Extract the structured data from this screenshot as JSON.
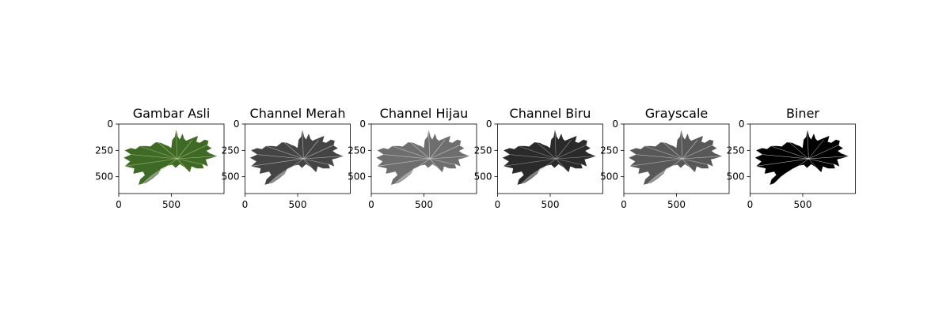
{
  "chart_data": [
    {
      "type": "image",
      "title": "Gambar Asli",
      "color_mode": "rgb",
      "xlim": [
        0,
        1000
      ],
      "ylim": [
        660,
        0
      ],
      "xticks": [
        {
          "value": 0,
          "label": "0"
        },
        {
          "value": 500,
          "label": "500"
        }
      ],
      "yticks": [
        {
          "value": 0,
          "label": "0"
        },
        {
          "value": 250,
          "label": "250"
        },
        {
          "value": 500,
          "label": "500"
        }
      ],
      "colors": {
        "fill": "#3e6a25",
        "shade": "#27491a",
        "vein": "#b8c98a",
        "background": "#ffffff"
      }
    },
    {
      "type": "image",
      "title": "Channel Merah",
      "color_mode": "gray",
      "xlim": [
        0,
        1000
      ],
      "ylim": [
        660,
        0
      ],
      "xticks": [
        {
          "value": 0,
          "label": "0"
        },
        {
          "value": 500,
          "label": "500"
        }
      ],
      "yticks": [
        {
          "value": 0,
          "label": "0"
        },
        {
          "value": 250,
          "label": "250"
        },
        {
          "value": 500,
          "label": "500"
        }
      ],
      "colors": {
        "fill": "#444444",
        "shade": "#2c2c2c",
        "vein": "#d0d0d0",
        "background": "#ffffff"
      }
    },
    {
      "type": "image",
      "title": "Channel Hijau",
      "color_mode": "gray",
      "xlim": [
        0,
        1000
      ],
      "ylim": [
        660,
        0
      ],
      "xticks": [
        {
          "value": 0,
          "label": "0"
        },
        {
          "value": 500,
          "label": "500"
        }
      ],
      "yticks": [
        {
          "value": 0,
          "label": "0"
        },
        {
          "value": 250,
          "label": "250"
        },
        {
          "value": 500,
          "label": "500"
        }
      ],
      "colors": {
        "fill": "#6e6e6e",
        "shade": "#505050",
        "vein": "#dcdcdc",
        "background": "#ffffff"
      }
    },
    {
      "type": "image",
      "title": "Channel Biru",
      "color_mode": "gray",
      "xlim": [
        0,
        1000
      ],
      "ylim": [
        660,
        0
      ],
      "xticks": [
        {
          "value": 0,
          "label": "0"
        },
        {
          "value": 500,
          "label": "500"
        }
      ],
      "yticks": [
        {
          "value": 0,
          "label": "0"
        },
        {
          "value": 250,
          "label": "250"
        },
        {
          "value": 500,
          "label": "500"
        }
      ],
      "colors": {
        "fill": "#2a2a2a",
        "shade": "#181818",
        "vein": "#a8a8a8",
        "background": "#ffffff"
      }
    },
    {
      "type": "image",
      "title": "Grayscale",
      "color_mode": "gray",
      "xlim": [
        0,
        1000
      ],
      "ylim": [
        660,
        0
      ],
      "xticks": [
        {
          "value": 0,
          "label": "0"
        },
        {
          "value": 500,
          "label": "500"
        }
      ],
      "yticks": [
        {
          "value": 0,
          "label": "0"
        },
        {
          "value": 250,
          "label": "250"
        },
        {
          "value": 500,
          "label": "500"
        }
      ],
      "colors": {
        "fill": "#585858",
        "shade": "#3a3a3a",
        "vein": "#d4d4d4",
        "background": "#ffffff"
      }
    },
    {
      "type": "image",
      "title": "Biner",
      "color_mode": "binary",
      "xlim": [
        0,
        1000
      ],
      "ylim": [
        660,
        0
      ],
      "xticks": [
        {
          "value": 0,
          "label": "0"
        },
        {
          "value": 500,
          "label": "500"
        }
      ],
      "yticks": [
        {
          "value": 0,
          "label": "0"
        },
        {
          "value": 250,
          "label": "250"
        },
        {
          "value": 500,
          "label": "500"
        }
      ],
      "colors": {
        "fill": "#000000",
        "shade": "#000000",
        "vein": "#ffffff",
        "background": "#ffffff"
      }
    }
  ]
}
